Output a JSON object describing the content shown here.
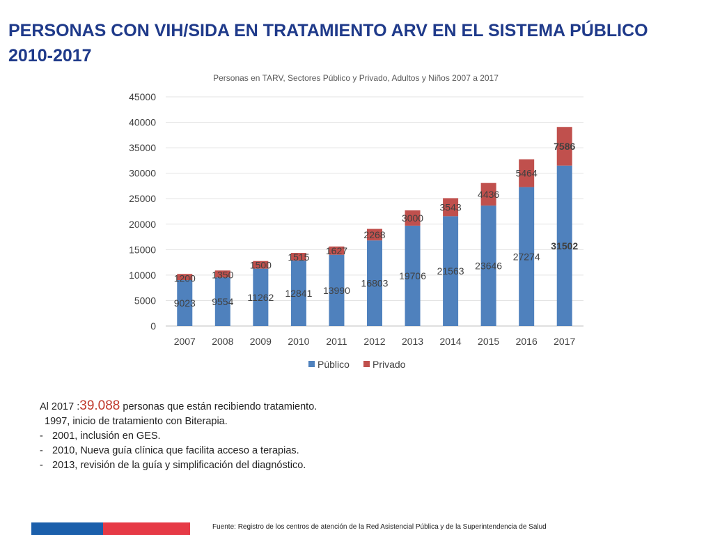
{
  "slide": {
    "title_line1": "PERSONAS CON VIH/SIDA EN TRATAMIENTO ARV EN EL SISTEMA PÚBLICO",
    "title_line2": "2010-2017",
    "title_color": "#1f3a8a"
  },
  "chart_data": {
    "type": "bar",
    "stacked": true,
    "title": "Personas en TARV, Sectores Público y Privado, Adultos y Niños 2007 a 2017",
    "categories": [
      "2007",
      "2008",
      "2009",
      "2010",
      "2011",
      "2012",
      "2013",
      "2014",
      "2015",
      "2016",
      "2017"
    ],
    "series": [
      {
        "name": "Público",
        "color": "#4f81bd",
        "values": [
          9023,
          9554,
          11262,
          12841,
          13990,
          16803,
          19706,
          21563,
          23646,
          27274,
          31502
        ]
      },
      {
        "name": "Privado",
        "color": "#c0504d",
        "values": [
          1200,
          1350,
          1500,
          1515,
          1627,
          2268,
          3000,
          3543,
          4436,
          5464,
          7586
        ]
      }
    ],
    "yticks": [
      "0",
      "5000",
      "10000",
      "15000",
      "20000",
      "25000",
      "30000",
      "35000",
      "40000",
      "45000"
    ],
    "ylim": [
      0,
      45000
    ],
    "xlabel": "",
    "ylabel": "",
    "legend": "bottom",
    "grid": true,
    "bold_last_labels": true
  },
  "notes": {
    "line1_prefix": "Al 2017 :",
    "line1_value": "39.088",
    "line1_suffix": " personas que están recibiendo tratamiento.",
    "line2": "1997, inicio de tratamiento con Biterapia.",
    "bullets": [
      "2001, inclusión en GES.",
      "2010, Nueva guía clínica que facilita acceso a terapias.",
      "2013, revisión de la guía y simplificación del diagnóstico."
    ],
    "dash": "-"
  },
  "footer": {
    "source": "Fuente: Registro  de los centros de atención de la Red Asistencial Pública y de la Superintendencia de Salud"
  }
}
